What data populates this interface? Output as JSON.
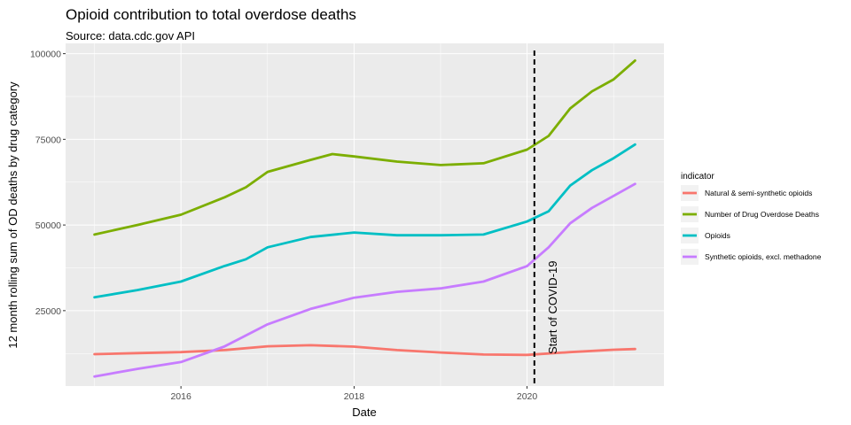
{
  "chart_data": {
    "type": "line",
    "title": "Opioid contribution to total overdose deaths",
    "subtitle": "Source: data.cdc.gov API",
    "xlabel": "Date",
    "ylabel": "12 month rolling sum of OD deaths by drug category",
    "xlim": [
      "2014-09-01",
      "2021-08-01"
    ],
    "ylim": [
      3000,
      103000
    ],
    "x_ticks": [
      {
        "date": "2016-01-01",
        "label": "2016"
      },
      {
        "date": "2018-01-01",
        "label": "2018"
      },
      {
        "date": "2020-01-01",
        "label": "2020"
      }
    ],
    "y_ticks": [
      {
        "value": 25000,
        "label": "25000"
      },
      {
        "value": 50000,
        "label": "50000"
      },
      {
        "value": 75000,
        "label": "75000"
      },
      {
        "value": 100000,
        "label": "100000"
      }
    ],
    "grid": true,
    "legend": {
      "title": "indicator",
      "position": "right"
    },
    "annotation": {
      "text": "Start of COVID-19",
      "date": "2020-02-01"
    },
    "series": [
      {
        "name": "Natural & semi-synthetic opioids",
        "color": "#F8766D",
        "points": [
          [
            "2015-01-01",
            12300
          ],
          [
            "2015-07-01",
            12600
          ],
          [
            "2016-01-01",
            12900
          ],
          [
            "2016-07-01",
            13500
          ],
          [
            "2017-01-01",
            14600
          ],
          [
            "2017-07-01",
            14900
          ],
          [
            "2018-01-01",
            14500
          ],
          [
            "2018-07-01",
            13500
          ],
          [
            "2019-01-01",
            12800
          ],
          [
            "2019-07-01",
            12200
          ],
          [
            "2020-01-01",
            12100
          ],
          [
            "2020-07-01",
            12900
          ],
          [
            "2021-01-01",
            13600
          ],
          [
            "2021-04-01",
            13800
          ]
        ]
      },
      {
        "name": "Number of Drug Overdose Deaths",
        "color": "#7CAE00",
        "points": [
          [
            "2015-01-01",
            47200
          ],
          [
            "2015-07-01",
            50000
          ],
          [
            "2016-01-01",
            53000
          ],
          [
            "2016-07-01",
            58000
          ],
          [
            "2016-10-01",
            61000
          ],
          [
            "2017-01-01",
            65500
          ],
          [
            "2017-07-01",
            69000
          ],
          [
            "2017-10-01",
            70700
          ],
          [
            "2018-01-01",
            70000
          ],
          [
            "2018-07-01",
            68500
          ],
          [
            "2019-01-01",
            67500
          ],
          [
            "2019-07-01",
            68000
          ],
          [
            "2020-01-01",
            72000
          ],
          [
            "2020-04-01",
            76000
          ],
          [
            "2020-07-01",
            84000
          ],
          [
            "2020-10-01",
            89000
          ],
          [
            "2021-01-01",
            92500
          ],
          [
            "2021-04-01",
            98000
          ]
        ]
      },
      {
        "name": "Opioids",
        "color": "#00BFC4",
        "points": [
          [
            "2015-01-01",
            28900
          ],
          [
            "2015-07-01",
            31000
          ],
          [
            "2016-01-01",
            33500
          ],
          [
            "2016-07-01",
            38000
          ],
          [
            "2016-10-01",
            40000
          ],
          [
            "2017-01-01",
            43500
          ],
          [
            "2017-07-01",
            46500
          ],
          [
            "2018-01-01",
            47800
          ],
          [
            "2018-07-01",
            47000
          ],
          [
            "2019-01-01",
            47000
          ],
          [
            "2019-07-01",
            47200
          ],
          [
            "2020-01-01",
            51000
          ],
          [
            "2020-04-01",
            54000
          ],
          [
            "2020-07-01",
            61500
          ],
          [
            "2020-10-01",
            66000
          ],
          [
            "2021-01-01",
            69500
          ],
          [
            "2021-04-01",
            73500
          ]
        ]
      },
      {
        "name": "Synthetic opioids, excl. methadone",
        "color": "#C77CFF",
        "points": [
          [
            "2015-01-01",
            5800
          ],
          [
            "2015-07-01",
            8000
          ],
          [
            "2016-01-01",
            10000
          ],
          [
            "2016-07-01",
            14500
          ],
          [
            "2017-01-01",
            21000
          ],
          [
            "2017-07-01",
            25500
          ],
          [
            "2018-01-01",
            28800
          ],
          [
            "2018-07-01",
            30500
          ],
          [
            "2019-01-01",
            31500
          ],
          [
            "2019-07-01",
            33500
          ],
          [
            "2020-01-01",
            38000
          ],
          [
            "2020-04-01",
            43500
          ],
          [
            "2020-07-01",
            50500
          ],
          [
            "2020-10-01",
            55000
          ],
          [
            "2021-01-01",
            58500
          ],
          [
            "2021-04-01",
            62000
          ]
        ]
      }
    ]
  }
}
